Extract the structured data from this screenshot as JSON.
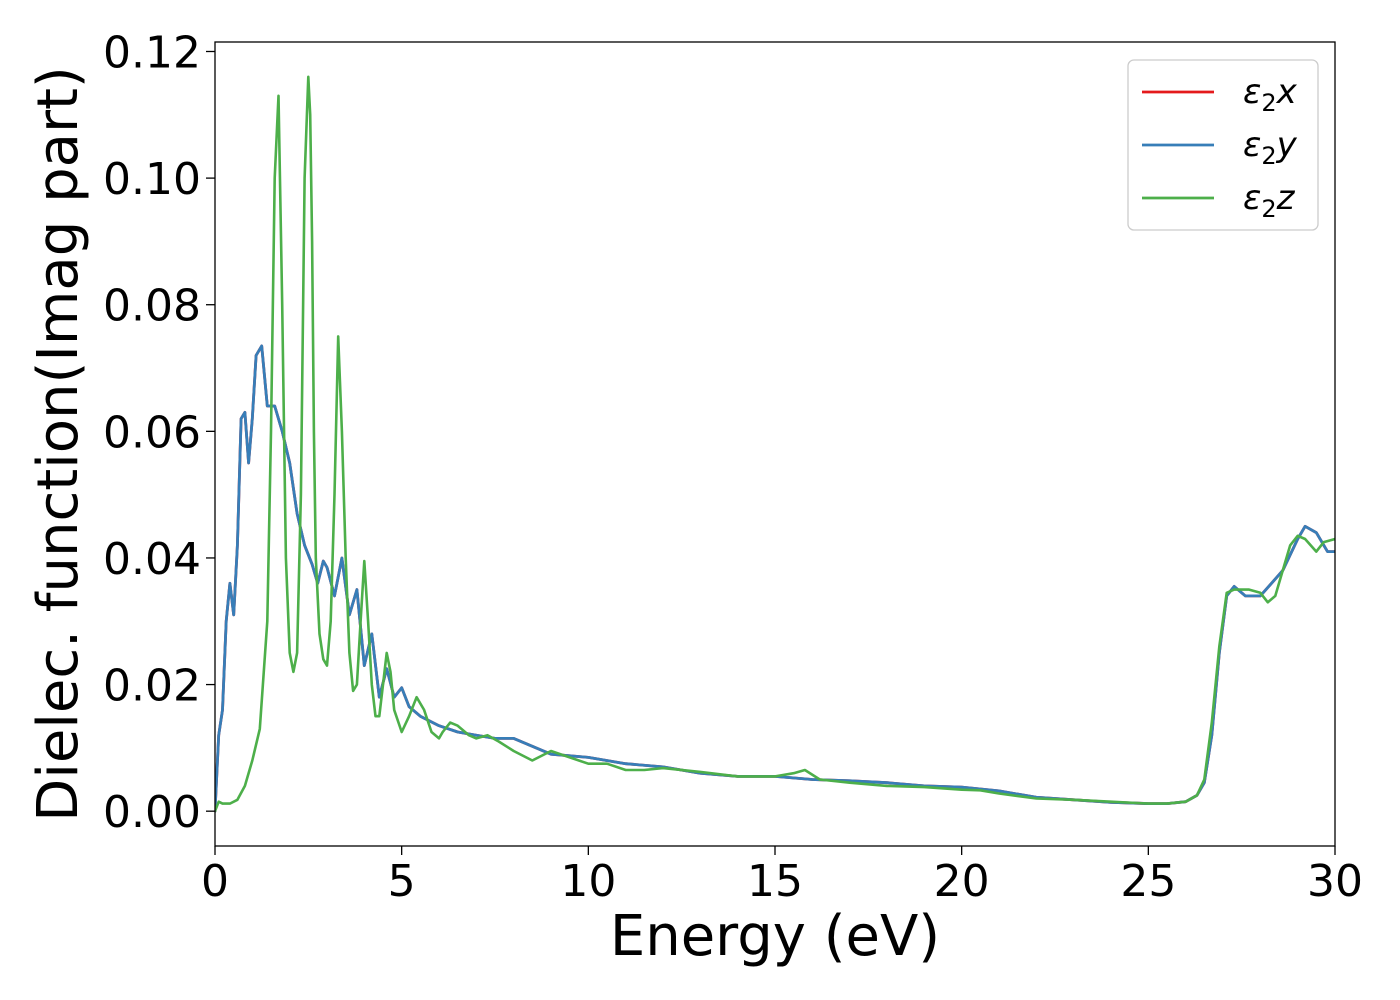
{
  "chart_data": {
    "type": "line",
    "xlabel": "Energy (eV)",
    "ylabel": "Dielec. function(Imag part)",
    "xlim": [
      0,
      30
    ],
    "ylim": [
      -0.0055,
      0.1215
    ],
    "xticks": [
      "0",
      "5",
      "10",
      "15",
      "20",
      "25",
      "30"
    ],
    "yticks": [
      "0.00",
      "0.02",
      "0.04",
      "0.06",
      "0.08",
      "0.10",
      "0.12"
    ],
    "legend_position": "top-right",
    "grid": false,
    "series": [
      {
        "name": "ε₂x",
        "legend_main": "ε",
        "legend_sub": "2",
        "legend_tail": "x",
        "color": "#e41a1c",
        "x": [
          0,
          0.1,
          0.2,
          0.3,
          0.4,
          0.5,
          0.6,
          0.7,
          0.8,
          0.9,
          1.0,
          1.1,
          1.25,
          1.4,
          1.6,
          1.8,
          2.0,
          2.2,
          2.4,
          2.6,
          2.75,
          2.9,
          3.0,
          3.2,
          3.4,
          3.6,
          3.8,
          4.0,
          4.2,
          4.4,
          4.6,
          4.8,
          5.0,
          5.2,
          5.5,
          6.0,
          6.5,
          7.0,
          7.5,
          8.0,
          9.0,
          10.0,
          11.0,
          12.0,
          13.0,
          14.0,
          15.0,
          16.0,
          17.0,
          18.0,
          19.0,
          20.0,
          21.0,
          22.0,
          23.0,
          24.0,
          25.0,
          25.5,
          26.0,
          26.3,
          26.5,
          26.7,
          26.9,
          27.1,
          27.3,
          27.6,
          28.0,
          28.3,
          28.6,
          29.0,
          29.2,
          29.5,
          29.8,
          30.0
        ],
        "y": [
          0.0,
          0.012,
          0.016,
          0.03,
          0.036,
          0.031,
          0.042,
          0.062,
          0.063,
          0.055,
          0.062,
          0.072,
          0.0735,
          0.064,
          0.064,
          0.06,
          0.055,
          0.047,
          0.042,
          0.039,
          0.036,
          0.0395,
          0.0385,
          0.034,
          0.04,
          0.031,
          0.035,
          0.023,
          0.028,
          0.018,
          0.0225,
          0.018,
          0.0195,
          0.0165,
          0.015,
          0.0135,
          0.0125,
          0.012,
          0.0115,
          0.0115,
          0.009,
          0.0085,
          0.0075,
          0.007,
          0.006,
          0.0055,
          0.0055,
          0.005,
          0.0048,
          0.0045,
          0.004,
          0.0038,
          0.0032,
          0.0022,
          0.0018,
          0.0014,
          0.0012,
          0.0012,
          0.0015,
          0.0025,
          0.0045,
          0.012,
          0.025,
          0.034,
          0.0355,
          0.034,
          0.034,
          0.036,
          0.038,
          0.043,
          0.045,
          0.044,
          0.041,
          0.041
        ]
      },
      {
        "name": "ε₂y",
        "legend_main": "ε",
        "legend_sub": "2",
        "legend_tail": "y",
        "color": "#377eb8",
        "x": [
          0,
          0.1,
          0.2,
          0.3,
          0.4,
          0.5,
          0.6,
          0.7,
          0.8,
          0.9,
          1.0,
          1.1,
          1.25,
          1.4,
          1.6,
          1.8,
          2.0,
          2.2,
          2.4,
          2.6,
          2.75,
          2.9,
          3.0,
          3.2,
          3.4,
          3.6,
          3.8,
          4.0,
          4.2,
          4.4,
          4.6,
          4.8,
          5.0,
          5.2,
          5.5,
          6.0,
          6.5,
          7.0,
          7.5,
          8.0,
          9.0,
          10.0,
          11.0,
          12.0,
          13.0,
          14.0,
          15.0,
          16.0,
          17.0,
          18.0,
          19.0,
          20.0,
          21.0,
          22.0,
          23.0,
          24.0,
          25.0,
          25.5,
          26.0,
          26.3,
          26.5,
          26.7,
          26.9,
          27.1,
          27.3,
          27.6,
          28.0,
          28.3,
          28.6,
          29.0,
          29.2,
          29.5,
          29.8,
          30.0
        ],
        "y": [
          0.0,
          0.012,
          0.016,
          0.03,
          0.036,
          0.031,
          0.042,
          0.062,
          0.063,
          0.055,
          0.062,
          0.072,
          0.0735,
          0.064,
          0.064,
          0.06,
          0.055,
          0.047,
          0.042,
          0.039,
          0.036,
          0.0395,
          0.0385,
          0.034,
          0.04,
          0.031,
          0.035,
          0.023,
          0.028,
          0.018,
          0.0225,
          0.018,
          0.0195,
          0.0165,
          0.015,
          0.0135,
          0.0125,
          0.012,
          0.0115,
          0.0115,
          0.009,
          0.0085,
          0.0075,
          0.007,
          0.006,
          0.0055,
          0.0055,
          0.005,
          0.0048,
          0.0045,
          0.004,
          0.0038,
          0.0032,
          0.0022,
          0.0018,
          0.0014,
          0.0012,
          0.0012,
          0.0015,
          0.0025,
          0.0045,
          0.012,
          0.025,
          0.034,
          0.0355,
          0.034,
          0.034,
          0.036,
          0.038,
          0.043,
          0.045,
          0.044,
          0.041,
          0.041
        ]
      },
      {
        "name": "ε₂z",
        "legend_main": "ε",
        "legend_sub": "2",
        "legend_tail": "z",
        "color": "#4daf4a",
        "x": [
          0,
          0.1,
          0.2,
          0.4,
          0.6,
          0.8,
          1.0,
          1.2,
          1.4,
          1.5,
          1.6,
          1.7,
          1.8,
          1.9,
          2.0,
          2.1,
          2.2,
          2.3,
          2.4,
          2.5,
          2.55,
          2.6,
          2.65,
          2.7,
          2.8,
          2.9,
          3.0,
          3.1,
          3.2,
          3.3,
          3.4,
          3.5,
          3.6,
          3.7,
          3.8,
          3.9,
          4.0,
          4.1,
          4.2,
          4.3,
          4.4,
          4.5,
          4.6,
          4.7,
          4.8,
          5.0,
          5.2,
          5.4,
          5.6,
          5.8,
          6.0,
          6.1,
          6.3,
          6.5,
          6.8,
          7.0,
          7.3,
          7.6,
          8.0,
          8.5,
          9.0,
          9.5,
          10.0,
          10.5,
          11.0,
          11.5,
          12.0,
          13.0,
          14.0,
          15.0,
          15.5,
          15.8,
          16.2,
          17.0,
          18.0,
          19.0,
          20.0,
          20.5,
          21.0,
          22.0,
          23.0,
          24.0,
          25.0,
          25.5,
          26.0,
          26.3,
          26.5,
          26.7,
          26.9,
          27.1,
          27.3,
          27.5,
          27.7,
          28.0,
          28.2,
          28.4,
          28.6,
          28.8,
          29.0,
          29.2,
          29.5,
          29.7,
          30.0
        ],
        "y": [
          0.0,
          0.0015,
          0.0012,
          0.0012,
          0.0018,
          0.004,
          0.008,
          0.013,
          0.03,
          0.06,
          0.1,
          0.113,
          0.08,
          0.04,
          0.025,
          0.022,
          0.025,
          0.05,
          0.1,
          0.116,
          0.11,
          0.09,
          0.06,
          0.04,
          0.028,
          0.024,
          0.023,
          0.03,
          0.05,
          0.075,
          0.06,
          0.04,
          0.025,
          0.019,
          0.02,
          0.03,
          0.0395,
          0.03,
          0.02,
          0.015,
          0.015,
          0.02,
          0.025,
          0.022,
          0.016,
          0.0125,
          0.015,
          0.018,
          0.016,
          0.0125,
          0.0115,
          0.0125,
          0.014,
          0.0135,
          0.012,
          0.0115,
          0.012,
          0.011,
          0.0095,
          0.008,
          0.0095,
          0.0085,
          0.0075,
          0.0075,
          0.0065,
          0.0065,
          0.0068,
          0.0062,
          0.0055,
          0.0055,
          0.006,
          0.0065,
          0.005,
          0.0045,
          0.004,
          0.0038,
          0.0034,
          0.0033,
          0.0028,
          0.002,
          0.0018,
          0.0015,
          0.0012,
          0.0012,
          0.0015,
          0.0025,
          0.005,
          0.014,
          0.026,
          0.0345,
          0.035,
          0.035,
          0.035,
          0.0345,
          0.033,
          0.034,
          0.038,
          0.042,
          0.0435,
          0.043,
          0.041,
          0.0425,
          0.043
        ]
      }
    ]
  }
}
